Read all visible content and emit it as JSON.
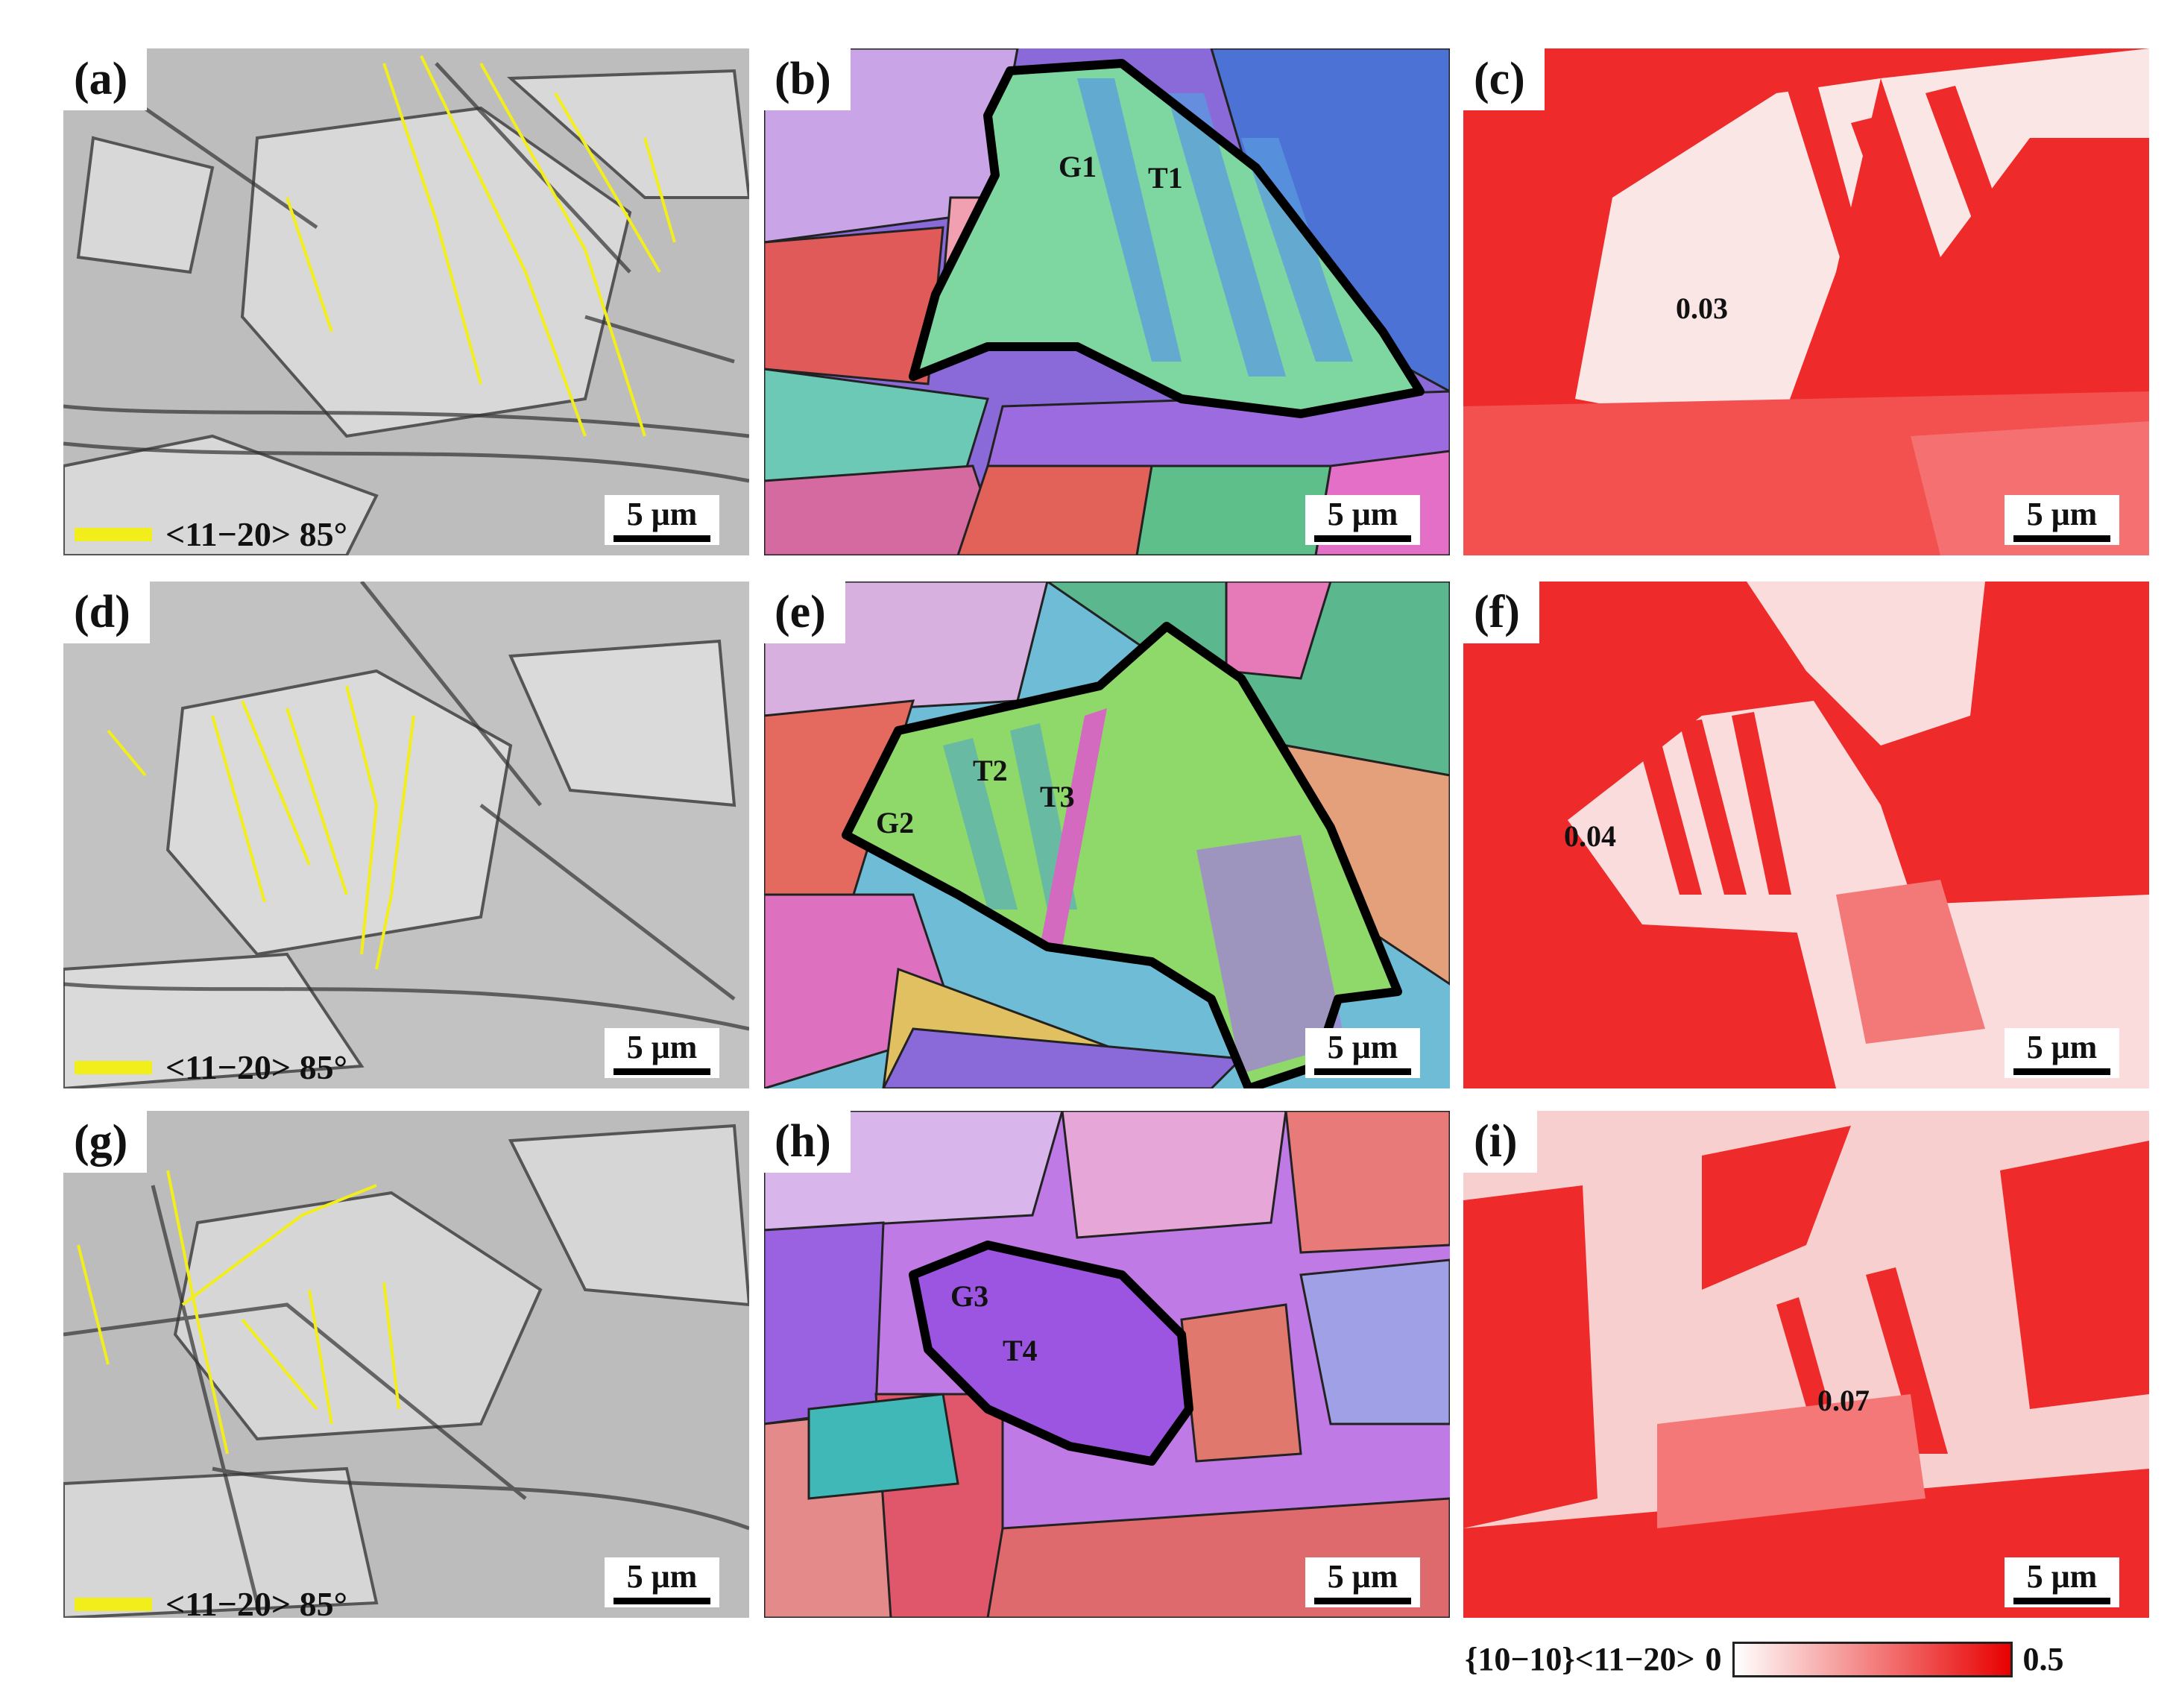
{
  "panels": {
    "a": {
      "label": "(a)",
      "scale": "5 μm"
    },
    "b": {
      "label": "(b)",
      "scale": "5 μm",
      "annotations": [
        "G1",
        "T1"
      ]
    },
    "c": {
      "label": "(c)",
      "scale": "5 μm",
      "value": "0.03"
    },
    "d": {
      "label": "(d)",
      "scale": "5 μm"
    },
    "e": {
      "label": "(e)",
      "scale": "5 μm",
      "annotations": [
        "G2",
        "T2",
        "T3"
      ]
    },
    "f": {
      "label": "(f)",
      "scale": "5 μm",
      "value": "0.04"
    },
    "g": {
      "label": "(g)",
      "scale": "5 μm"
    },
    "h": {
      "label": "(h)",
      "scale": "5 μm",
      "annotations": [
        "G3",
        "T4"
      ]
    },
    "i": {
      "label": "(i)",
      "scale": "5 μm",
      "value": "0.07"
    }
  },
  "twin_legend": {
    "text": "<11−20> 85°",
    "color": "#f2ee1c"
  },
  "colorbar": {
    "label": "{10−10}<11−20>",
    "min": "0",
    "max": "0.5",
    "min_color": "#ffffff",
    "max_color": "#e80000"
  }
}
